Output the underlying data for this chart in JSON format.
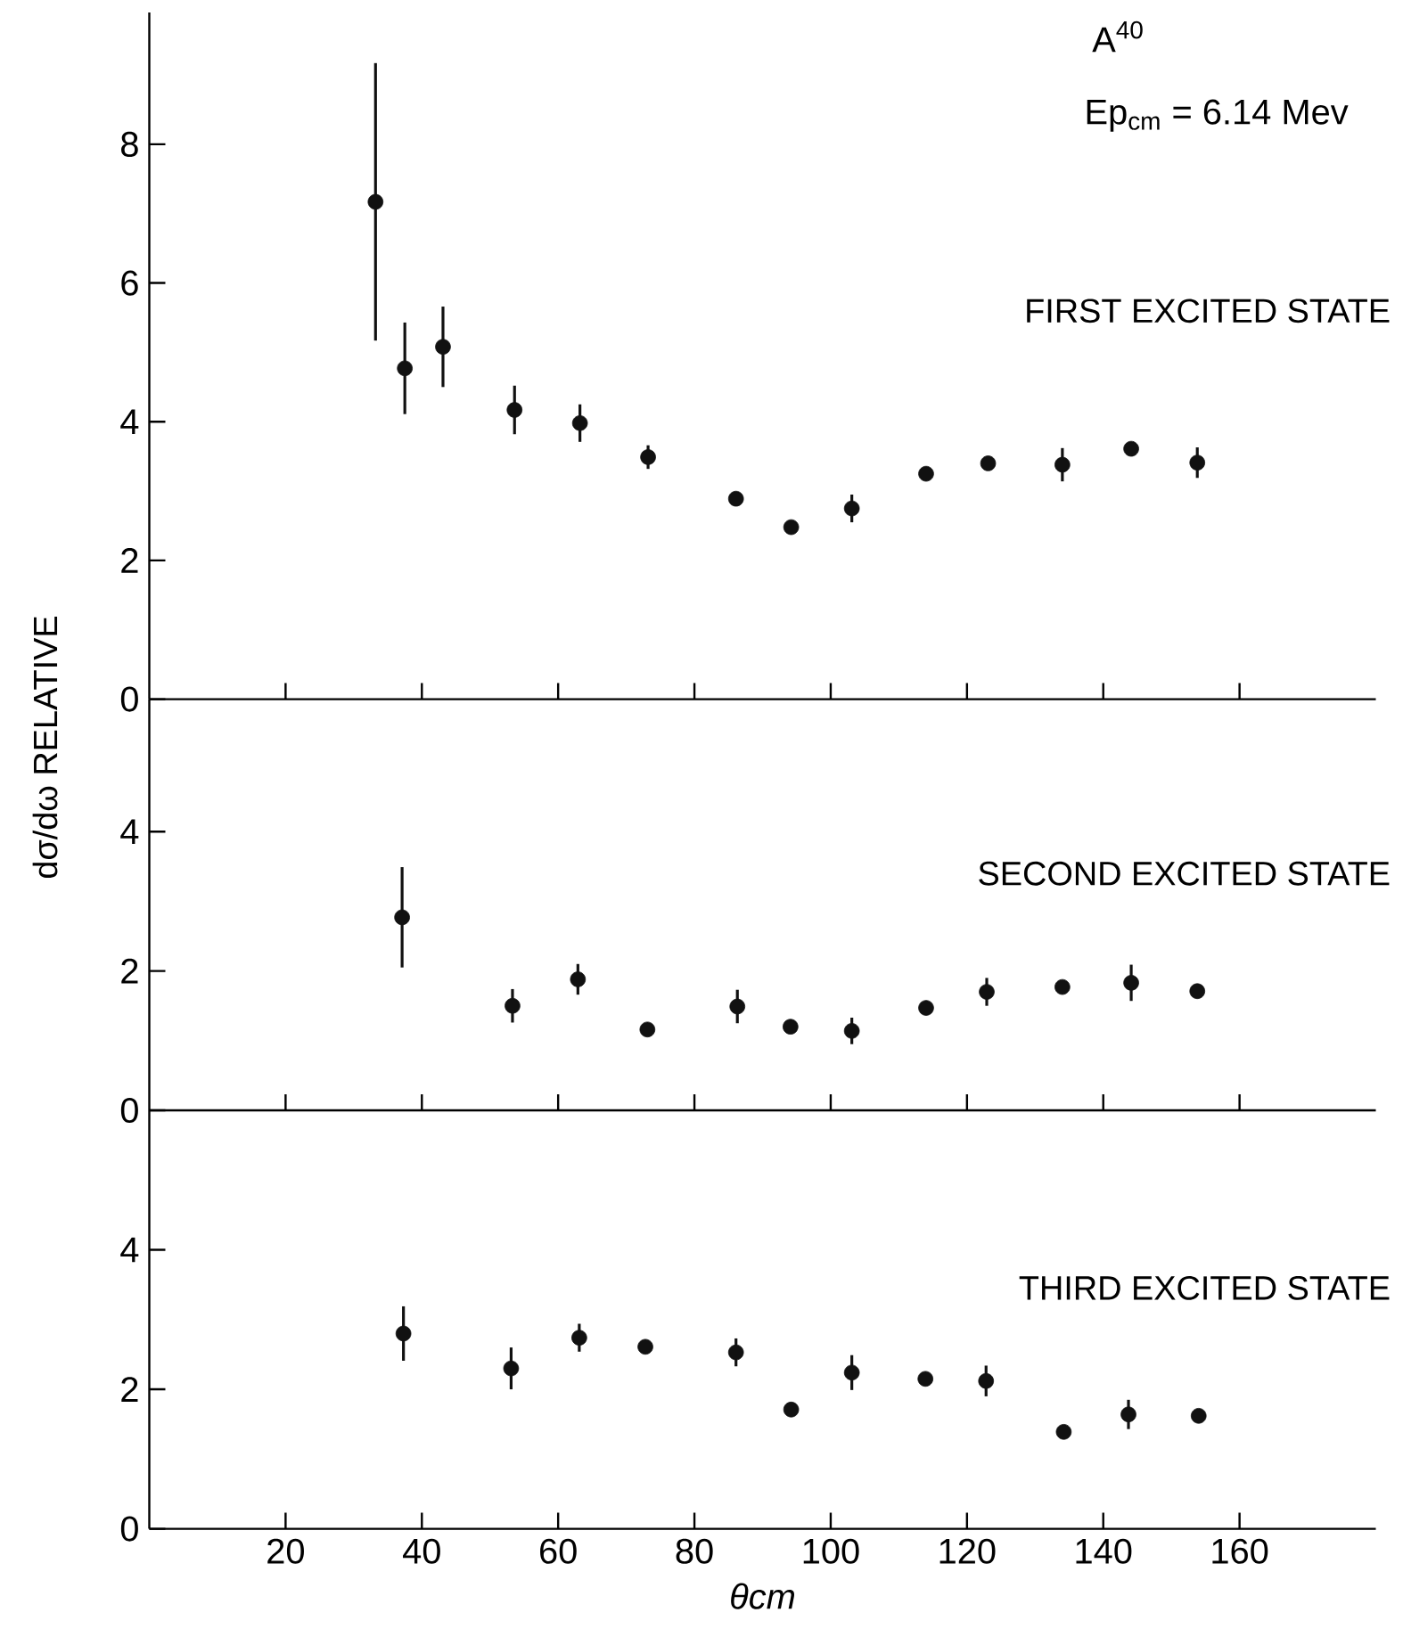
{
  "chart_data": [
    {
      "type": "scatter",
      "title": "FIRST EXCITED STATE",
      "ylabel": "dσ/dω RELATIVE",
      "annotations": [
        "A$^{40}$",
        "Ep$_{cm}$ = 6.14 Mev"
      ],
      "marker": "circle",
      "color": "#111111",
      "tick_labels": "y",
      "xlim": [
        0,
        180
      ],
      "ylim": [
        0,
        9.9
      ],
      "xticks": [
        20,
        40,
        60,
        80,
        100,
        120,
        140,
        160
      ],
      "yticks": [
        0,
        2,
        4,
        6,
        8
      ],
      "x": [
        33.2,
        37.5,
        43.1,
        53.6,
        63.2,
        73.2,
        86.1,
        94.2,
        103.1,
        114.0,
        123.1,
        134.0,
        144.1,
        153.8
      ],
      "values": [
        7.17,
        4.77,
        5.08,
        4.17,
        3.98,
        3.49,
        2.89,
        2.48,
        2.75,
        3.25,
        3.4,
        3.38,
        3.61,
        3.41
      ],
      "errors": [
        2.0,
        0.66,
        0.58,
        0.35,
        0.27,
        0.17,
        null,
        null,
        0.2,
        null,
        null,
        0.24,
        null,
        0.22
      ]
    },
    {
      "type": "scatter",
      "title": "SECOND EXCITED STATE",
      "marker": "circle",
      "color": "#111111",
      "tick_labels": "y",
      "xlim": [
        0,
        180
      ],
      "ylim": [
        0,
        5.9
      ],
      "xticks": [
        20,
        40,
        60,
        80,
        100,
        120,
        140,
        160
      ],
      "yticks": [
        0,
        2,
        4
      ],
      "x": [
        37.1,
        53.3,
        62.9,
        73.1,
        86.3,
        94.1,
        103.1,
        114.0,
        122.9,
        134.0,
        144.1,
        153.8
      ],
      "values": [
        2.77,
        1.5,
        1.88,
        1.16,
        1.49,
        1.2,
        1.14,
        1.47,
        1.7,
        1.77,
        1.83,
        1.71
      ],
      "errors": [
        0.72,
        0.24,
        0.22,
        null,
        0.24,
        null,
        0.19,
        null,
        0.2,
        null,
        0.26,
        null
      ]
    },
    {
      "type": "scatter",
      "title": "THIRD EXCITED STATE",
      "xlabel": "θcm",
      "marker": "circle",
      "color": "#111111",
      "xlim": [
        0,
        180
      ],
      "ylim": [
        0,
        6
      ],
      "xticks": [
        20,
        40,
        60,
        80,
        100,
        120,
        140,
        160
      ],
      "yticks": [
        0,
        2,
        4
      ],
      "x": [
        37.3,
        53.1,
        63.1,
        72.8,
        86.1,
        94.2,
        103.1,
        113.9,
        122.8,
        134.2,
        143.7,
        154.0
      ],
      "values": [
        2.8,
        2.3,
        2.74,
        2.61,
        2.53,
        1.71,
        2.24,
        2.15,
        2.12,
        1.39,
        1.64,
        1.62
      ],
      "errors": [
        0.39,
        0.3,
        0.2,
        null,
        0.2,
        null,
        0.25,
        null,
        0.22,
        null,
        0.21,
        null
      ]
    }
  ]
}
